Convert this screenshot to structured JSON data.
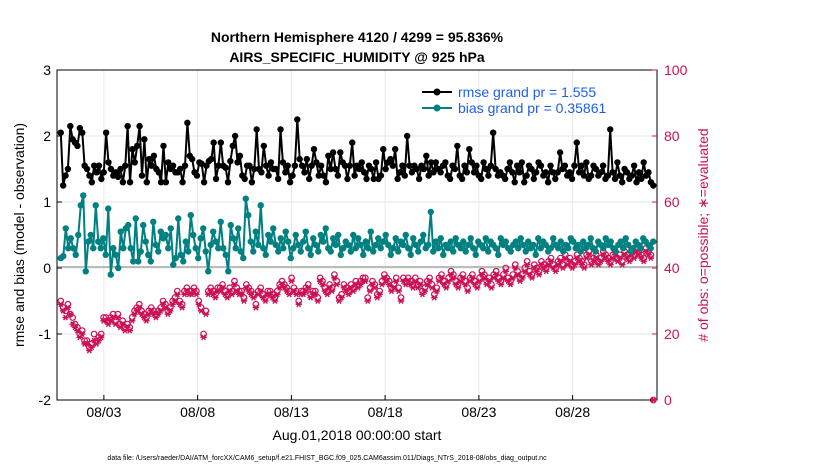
{
  "colors": {
    "rmse": "#000000",
    "bias": "#008080",
    "obs": "#cc1155",
    "zero": "#bbbbbb",
    "grid": "#e6e6e6"
  },
  "chart_data": {
    "type": "line",
    "title": "Northern Hemisphere 4120 / 4299 = 95.836%",
    "subtitle": "AIRS_SPECIFIC_HUMIDITY @ 925 hPa",
    "xlabel": "Aug.01,2018 00:00:00 start",
    "ylabel": "rmse and bias (model - observation)",
    "ylabel_right": "# of obs: o=possible; ∗=evaluated",
    "footnote": "data file: /Users/raeder/DAI/ATM_forcXX/CAM6_setup/f.e21.FHIST_BGC.f09_025.CAM6assim.011/Diags_NTrS_2018-08/obs_diag_output.nc",
    "xlim": [
      0.5,
      32.5
    ],
    "ylim": [
      -2,
      3
    ],
    "ylim_right": [
      0,
      100
    ],
    "xticks": [
      3,
      8,
      13,
      18,
      23,
      28
    ],
    "xtick_labels": [
      "08/03",
      "08/08",
      "08/13",
      "08/18",
      "08/23",
      "08/28"
    ],
    "yticks": [
      -2,
      -1,
      0,
      1,
      2,
      3
    ],
    "ytick_labels": [
      "-2",
      "-1",
      "0",
      "1",
      "2",
      "3"
    ],
    "yticks_right": [
      0,
      20,
      40,
      60,
      80,
      100
    ],
    "ytick_labels_right": [
      "0",
      "20",
      "40",
      "60",
      "80",
      "100"
    ],
    "legend": [
      "rmse grand pr = 1.555",
      "bias grand pr = 0.35861"
    ],
    "legend_position": "top-right",
    "series": [
      {
        "name": "rmse",
        "axis": "left",
        "values": [
          2.05,
          1.25,
          1.4,
          1.5,
          2.15,
          1.95,
          1.9,
          1.85,
          2.12,
          2.05,
          1.55,
          1.5,
          1.4,
          1.3,
          1.55,
          1.45,
          1.55,
          1.35,
          1.45,
          2.05,
          1.6,
          1.5,
          1.4,
          1.45,
          1.38,
          1.5,
          1.3,
          1.55,
          2.15,
          1.3,
          1.8,
          1.6,
          1.85,
          2.15,
          1.4,
          1.95,
          1.3,
          1.65,
          1.55,
          1.7,
          1.5,
          1.45,
          1.3,
          1.85,
          1.3,
          1.6,
          1.5,
          1.55,
          1.45,
          1.45,
          1.5,
          1.3,
          1.55,
          2.2,
          1.7,
          1.65,
          1.45,
          1.4,
          1.6,
          1.58,
          1.3,
          1.55,
          1.62,
          1.65,
          1.9,
          1.35,
          1.55,
          1.9,
          1.55,
          1.52,
          1.3,
          1.62,
          1.85,
          2.0,
          1.6,
          1.7,
          1.4,
          1.35,
          1.55,
          1.55,
          1.3,
          1.5,
          2.1,
          1.5,
          1.45,
          1.85,
          1.55,
          1.4,
          1.6,
          1.5,
          1.5,
          1.35,
          2.1,
          1.6,
          1.45,
          1.55,
          1.3,
          1.4,
          1.55,
          2.25,
          1.65,
          1.55,
          1.45,
          1.65,
          1.35,
          1.55,
          1.8,
          1.6,
          1.4,
          1.55,
          1.4,
          1.3,
          1.7,
          1.5,
          1.75,
          1.5,
          1.4,
          1.75,
          1.6,
          1.55,
          1.35,
          1.55,
          1.9,
          1.4,
          1.55,
          1.5,
          1.6,
          1.45,
          1.35,
          1.55,
          1.5,
          1.35,
          1.6,
          1.35,
          1.4,
          1.8,
          1.5,
          1.6,
          1.65,
          1.55,
          1.8,
          1.35,
          1.45,
          1.55,
          1.4,
          2.0,
          1.55,
          1.45,
          1.55,
          1.5,
          1.35,
          1.55,
          1.5,
          1.7,
          1.4,
          1.6,
          1.45,
          1.6,
          1.5,
          1.45,
          1.55,
          1.6,
          1.4,
          1.35,
          1.55,
          1.5,
          1.85,
          1.4,
          1.35,
          1.55,
          1.45,
          1.8,
          1.6,
          1.45,
          1.55,
          1.4,
          1.35,
          1.6,
          1.5,
          1.4,
          1.55,
          2.05,
          1.5,
          1.4,
          1.45,
          1.4,
          1.35,
          1.5,
          1.6,
          1.45,
          1.3,
          1.55,
          1.45,
          1.6,
          1.3,
          1.4,
          1.55,
          1.5,
          1.35,
          1.45,
          1.6,
          1.55,
          1.4,
          1.45,
          1.3,
          1.55,
          1.45,
          1.35,
          1.45,
          1.75,
          1.5,
          1.55,
          1.4,
          1.45,
          1.35,
          1.55,
          1.9,
          1.45,
          1.55,
          1.4,
          1.6,
          1.35,
          1.4,
          1.55,
          1.5,
          1.4,
          1.45,
          1.55,
          1.35,
          1.4,
          2.1,
          1.45,
          1.35,
          1.6,
          1.4,
          1.3,
          1.5,
          1.45,
          1.35,
          1.4,
          1.55,
          1.3,
          1.45,
          1.35,
          1.6,
          1.4,
          1.45,
          1.3,
          1.25
        ]
      },
      {
        "name": "bias",
        "axis": "left",
        "values": [
          0.15,
          0.18,
          0.6,
          0.3,
          0.45,
          0.3,
          0.2,
          0.5,
          0.95,
          1.1,
          -0.05,
          0.4,
          0.5,
          0.3,
          0.95,
          0.4,
          0.3,
          0.45,
          0.2,
          0.9,
          -0.1,
          0.3,
          0.2,
          0.0,
          0.55,
          0.3,
          0.6,
          0.65,
          0.3,
          0.1,
          0.75,
          0.1,
          0.25,
          0.65,
          0.4,
          0.2,
          0.1,
          0.7,
          0.35,
          0.25,
          0.55,
          0.45,
          0.5,
          0.3,
          0.6,
          0.05,
          0.15,
          0.75,
          0.2,
          0.1,
          0.4,
          0.25,
          0.8,
          0.5,
          0.3,
          0.15,
          0.45,
          0.6,
          0.25,
          -0.05,
          0.35,
          0.55,
          0.4,
          0.3,
          0.7,
          0.3,
          0.2,
          -0.05,
          0.65,
          0.45,
          0.3,
          0.6,
          0.25,
          0.15,
          1.05,
          0.8,
          0.4,
          0.25,
          0.55,
          0.35,
          0.95,
          0.3,
          0.2,
          0.5,
          0.4,
          0.6,
          0.35,
          0.25,
          0.45,
          0.3,
          0.55,
          0.4,
          0.15,
          0.3,
          0.5,
          0.35,
          0.25,
          0.4,
          0.55,
          0.3,
          0.2,
          0.45,
          0.35,
          0.25,
          0.5,
          0.4,
          0.6,
          0.3,
          0.25,
          0.45,
          0.35,
          0.5,
          0.2,
          0.3,
          0.4,
          0.35,
          0.25,
          0.5,
          0.3,
          0.45,
          0.35,
          0.2,
          0.4,
          0.3,
          0.55,
          0.25,
          0.35,
          0.45,
          0.3,
          0.4,
          0.5,
          0.35,
          0.2,
          0.3,
          0.45,
          0.25,
          0.4,
          0.35,
          0.5,
          0.3,
          0.2,
          0.45,
          0.35,
          0.25,
          0.4,
          0.5,
          0.3,
          0.35,
          0.85,
          0.25,
          0.4,
          0.3,
          0.45,
          0.2,
          0.35,
          0.3,
          0.4,
          0.25,
          0.45,
          0.35,
          0.3,
          0.4,
          0.25,
          0.35,
          0.45,
          0.3,
          0.2,
          0.4,
          0.35,
          0.3,
          0.45,
          0.25,
          0.4,
          0.35,
          0.3,
          0.2,
          0.45,
          0.35,
          0.4,
          0.3,
          0.25,
          0.35,
          0.4,
          0.3,
          0.45,
          0.35,
          0.25,
          0.4,
          0.3,
          0.35,
          0.2,
          0.45,
          0.3,
          0.4,
          0.35,
          0.25,
          0.3,
          0.45,
          0.35,
          0.3,
          0.4,
          0.25,
          0.35,
          0.3,
          0.45,
          0.4,
          0.3,
          0.35,
          0.25,
          0.4,
          0.3,
          0.35,
          0.45,
          0.3,
          0.25,
          0.4,
          0.35,
          0.3,
          0.45,
          0.35,
          0.4,
          0.3,
          0.25,
          0.35,
          0.4,
          0.3,
          0.45,
          0.35,
          0.25,
          0.3,
          0.4,
          0.35,
          0.3,
          0.45,
          0.4,
          0.35,
          0.3,
          0.4
        ]
      },
      {
        "name": "obs possible",
        "axis": "right",
        "values": [
          30,
          28,
          27,
          29,
          26,
          25,
          23,
          22,
          20,
          21,
          18,
          18,
          16,
          17,
          20,
          18,
          19,
          20,
          25,
          25,
          24,
          25,
          26,
          24,
          26,
          23,
          24,
          22,
          23,
          22,
          25,
          27,
          28,
          29,
          27,
          26,
          25,
          27,
          28,
          27,
          26,
          27,
          28,
          30,
          29,
          27,
          28,
          30,
          31,
          33,
          30,
          29,
          33,
          34,
          33,
          33,
          34,
          33,
          30,
          28,
          20,
          27,
          33,
          34,
          33,
          32,
          34,
          34,
          35,
          33,
          32,
          34,
          33,
          36,
          34,
          33,
          33,
          31,
          35,
          34,
          33,
          32,
          29,
          33,
          34,
          32,
          31,
          33,
          33,
          32,
          31,
          33,
          35,
          36,
          35,
          34,
          33,
          37,
          34,
          33,
          30,
          33,
          33,
          34,
          35,
          32,
          33,
          33,
          31,
          37,
          36,
          34,
          33,
          35,
          34,
          38,
          36,
          31,
          32,
          35,
          34,
          33,
          35,
          34,
          36,
          35,
          36,
          37,
          37,
          31,
          34,
          36,
          35,
          32,
          33,
          36,
          38,
          37,
          36,
          34,
          35,
          37,
          34,
          31,
          37,
          36,
          37,
          36,
          35,
          37,
          35,
          36,
          33,
          34,
          36,
          37,
          35,
          32,
          34,
          37,
          38,
          36,
          35,
          37,
          39,
          38,
          36,
          35,
          37,
          38,
          36,
          34,
          37,
          38,
          36,
          35,
          37,
          39,
          38,
          36,
          37,
          35,
          38,
          39,
          37,
          36,
          38,
          40,
          37,
          36,
          38,
          41,
          39,
          37,
          38,
          40,
          42,
          39,
          38,
          41,
          40,
          39,
          42,
          41,
          40,
          42,
          43,
          41,
          40,
          42,
          43,
          41,
          44,
          42,
          43,
          41,
          42,
          44,
          43,
          42,
          41,
          44,
          45,
          42,
          43,
          44,
          42,
          43,
          45,
          44,
          43,
          42,
          44,
          45,
          43,
          44,
          42,
          45,
          44,
          43,
          45,
          44,
          46,
          45,
          44,
          43,
          46,
          45,
          44,
          0
        ]
      },
      {
        "name": "obs evaluated",
        "axis": "right",
        "values": [
          29,
          27,
          25,
          28,
          26,
          23,
          22,
          21,
          19,
          20,
          17,
          17,
          15,
          16,
          18,
          17,
          18,
          19,
          24,
          24,
          23,
          24,
          25,
          23,
          25,
          22,
          23,
          21,
          22,
          21,
          24,
          26,
          27,
          28,
          26,
          25,
          24,
          26,
          27,
          26,
          25,
          26,
          27,
          29,
          28,
          26,
          27,
          29,
          30,
          32,
          29,
          28,
          32,
          33,
          32,
          32,
          33,
          32,
          29,
          27,
          19,
          26,
          32,
          33,
          32,
          31,
          33,
          33,
          34,
          32,
          31,
          33,
          32,
          35,
          33,
          32,
          32,
          30,
          34,
          33,
          32,
          31,
          28,
          32,
          33,
          31,
          30,
          32,
          32,
          31,
          30,
          32,
          34,
          35,
          34,
          33,
          32,
          36,
          33,
          32,
          29,
          32,
          32,
          33,
          34,
          31,
          32,
          32,
          30,
          36,
          35,
          33,
          32,
          34,
          33,
          37,
          35,
          30,
          31,
          34,
          33,
          32,
          34,
          33,
          35,
          34,
          35,
          36,
          36,
          30,
          33,
          35,
          34,
          31,
          32,
          35,
          37,
          36,
          35,
          33,
          34,
          36,
          33,
          30,
          36,
          35,
          36,
          35,
          34,
          36,
          34,
          35,
          32,
          33,
          35,
          36,
          34,
          31,
          33,
          36,
          37,
          35,
          34,
          36,
          38,
          37,
          35,
          34,
          36,
          37,
          35,
          33,
          36,
          37,
          35,
          34,
          36,
          38,
          37,
          35,
          36,
          34,
          37,
          38,
          36,
          35,
          37,
          39,
          36,
          35,
          37,
          40,
          38,
          36,
          37,
          39,
          41,
          38,
          37,
          40,
          39,
          38,
          41,
          40,
          39,
          41,
          42,
          40,
          39,
          41,
          42,
          40,
          43,
          41,
          42,
          40,
          41,
          43,
          42,
          41,
          40,
          43,
          44,
          41,
          42,
          43,
          41,
          42,
          44,
          43,
          42,
          41,
          43,
          44,
          42,
          43,
          41,
          44,
          43,
          42,
          44,
          43,
          45,
          44,
          43,
          42,
          45,
          44,
          43,
          0
        ]
      }
    ]
  }
}
